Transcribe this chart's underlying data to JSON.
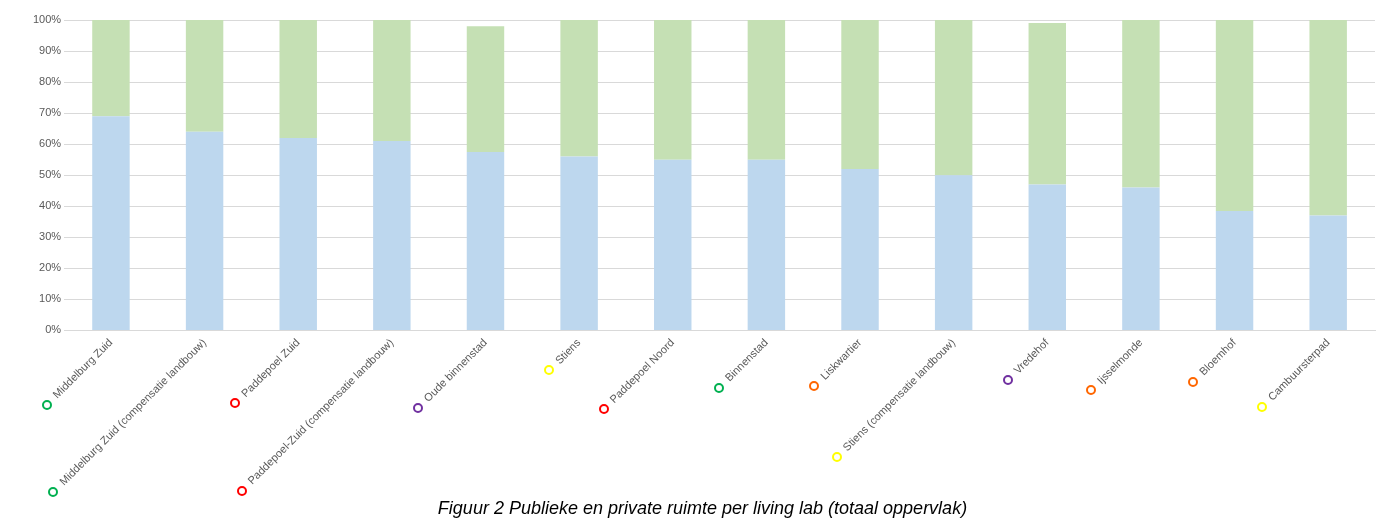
{
  "chart_data": {
    "type": "bar",
    "title": "Figuur 2 Publieke en private ruimte per living lab (totaal oppervlak)",
    "categories": [
      "Middelburg Zuid",
      "Middelburg Zuid (compensatie landbouw)",
      "Paddepoel Zuid",
      "Paddepoel-Zuid (compensatie landbouw)",
      "Oude binnenstad",
      "Stiens",
      "Paddepoel Noord",
      "Binnenstad",
      "Liskwartier",
      "Stiens (compensatie landbouw)",
      "Vredehof",
      "Ijsselmonde",
      "Bloemhof",
      "Cambuursterpad"
    ],
    "series": [
      {
        "color": "#bdd7ee",
        "values": [
          69,
          64,
          62,
          61,
          57.5,
          56,
          55,
          55,
          52,
          50,
          47,
          46,
          38.5,
          37
        ]
      },
      {
        "color": "#c5e0b4",
        "values": [
          31,
          36,
          38,
          39,
          40.5,
          44,
          45,
          45,
          48,
          50,
          52,
          54,
          61.5,
          63
        ]
      }
    ],
    "stacked": true,
    "ylim": [
      0,
      100
    ],
    "yticks": [
      {
        "value": 0,
        "label": "0%"
      },
      {
        "value": 10,
        "label": "10%"
      },
      {
        "value": 20,
        "label": "20%"
      },
      {
        "value": 30,
        "label": "30%"
      },
      {
        "value": 40,
        "label": "40%"
      },
      {
        "value": 50,
        "label": "50%"
      },
      {
        "value": 60,
        "label": "60%"
      },
      {
        "value": 70,
        "label": "70%"
      },
      {
        "value": 80,
        "label": "80%"
      },
      {
        "value": 90,
        "label": "90%"
      },
      {
        "value": 100,
        "label": "100%"
      }
    ],
    "grid": "y",
    "legend": false
  }
}
